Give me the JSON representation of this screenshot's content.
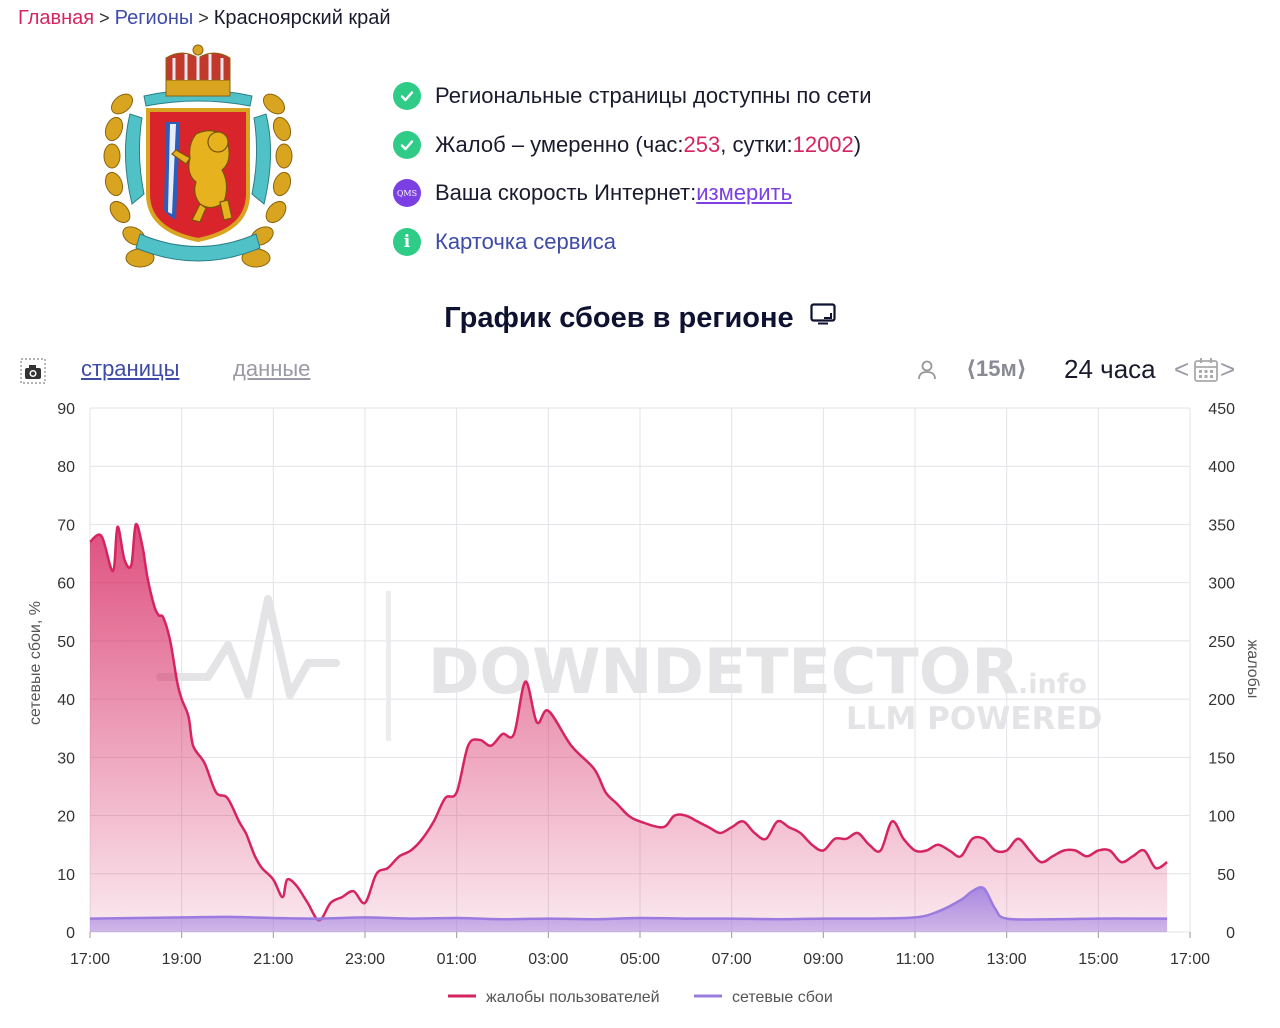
{
  "breadcrumb": {
    "home": "Главная",
    "regions": "Регионы",
    "current": "Красноярский край"
  },
  "status": {
    "network": "Региональные страницы доступны по сети",
    "complaints_prefix": "Жалоб – умеренно (час: ",
    "complaints_hour": "253",
    "complaints_mid": ", сутки: ",
    "complaints_day": "12002",
    "complaints_suffix": ")",
    "speed_prefix": "Ваша скорость Интернет: ",
    "speed_link": "измерить",
    "qms_badge": "QMS",
    "card_link": "Карточка сервиса",
    "info_glyph": "i"
  },
  "chart_title": "График сбоев в регионе",
  "toolbar": {
    "tab_pages": "страницы",
    "tab_data": "данные",
    "interval": "⟨15м⟩",
    "period": "24 часа",
    "prev": "<",
    "next": ">"
  },
  "watermark": {
    "main": "DOWNDETECTOR",
    "suffix": ".info",
    "sub": "LLM POWERED"
  },
  "colors": {
    "complaints": "#d6245f",
    "network": "#9b7be0",
    "accent_purple": "#7b3fe4",
    "ok_green": "#2ecc87",
    "link_blue": "#3f4ba8"
  },
  "icons": [
    "check-circle-icon",
    "qms-icon",
    "info-icon",
    "camera-icon",
    "tv-icon",
    "user-icon",
    "calendar-icon"
  ],
  "chart_data": {
    "type": "area",
    "xlabel": "",
    "ylabel_left": "сетевые сбои, %",
    "ylabel_right": "жалобы",
    "ylim_left": [
      0,
      90
    ],
    "ylim_right": [
      0,
      450
    ],
    "yticks_left": [
      0,
      10,
      20,
      30,
      40,
      50,
      60,
      70,
      80,
      90
    ],
    "yticks_right": [
      0,
      50,
      100,
      150,
      200,
      250,
      300,
      350,
      400,
      450
    ],
    "xticks": [
      "17:00",
      "19:00",
      "21:00",
      "23:00",
      "01:00",
      "03:00",
      "05:00",
      "07:00",
      "09:00",
      "11:00",
      "13:00",
      "15:00",
      "17:00"
    ],
    "x_unit": "hours since 17:00",
    "grid": true,
    "legend_position": "bottom",
    "series": [
      {
        "name": "жалобы пользователей",
        "axis": "right",
        "x": [
          0,
          0.25,
          0.5,
          0.6,
          0.75,
          0.9,
          1.0,
          1.15,
          1.25,
          1.4,
          1.5,
          1.6,
          1.75,
          1.9,
          2.0,
          2.15,
          2.25,
          2.5,
          2.75,
          3.0,
          3.25,
          3.4,
          3.5,
          3.6,
          3.75,
          4.0,
          4.2,
          4.3,
          4.5,
          4.75,
          5.0,
          5.25,
          5.5,
          5.75,
          6.0,
          6.25,
          6.5,
          6.75,
          7.0,
          7.25,
          7.5,
          7.75,
          8.0,
          8.25,
          8.5,
          8.75,
          9.0,
          9.25,
          9.5,
          9.75,
          10.0,
          10.5,
          11.0,
          11.25,
          11.5,
          11.75,
          12.0,
          12.5,
          12.75,
          13.0,
          13.25,
          13.5,
          13.75,
          14.0,
          14.25,
          14.5,
          14.75,
          15.0,
          15.25,
          15.5,
          15.75,
          16.0,
          16.25,
          16.5,
          16.75,
          17.0,
          17.25,
          17.5,
          17.75,
          18.0,
          18.25,
          18.5,
          18.75,
          19.0,
          19.25,
          19.5,
          19.75,
          20.0,
          20.25,
          20.5,
          20.75,
          21.0,
          21.25,
          21.5,
          21.75,
          22.0,
          22.25,
          22.5,
          22.75,
          23.0,
          23.25,
          23.5
        ],
        "values": [
          335,
          340,
          310,
          348,
          320,
          315,
          350,
          330,
          305,
          280,
          272,
          270,
          250,
          215,
          200,
          185,
          160,
          145,
          120,
          115,
          95,
          85,
          75,
          65,
          55,
          45,
          30,
          45,
          40,
          25,
          10,
          25,
          30,
          35,
          25,
          50,
          55,
          65,
          70,
          80,
          95,
          115,
          120,
          160,
          165,
          160,
          170,
          170,
          215,
          180,
          190,
          160,
          140,
          120,
          110,
          100,
          95,
          90,
          100,
          100,
          95,
          90,
          85,
          90,
          95,
          85,
          80,
          95,
          90,
          85,
          75,
          70,
          80,
          80,
          85,
          75,
          70,
          95,
          80,
          70,
          70,
          75,
          70,
          65,
          80,
          80,
          70,
          70,
          80,
          70,
          60,
          65,
          70,
          70,
          65,
          70,
          70,
          60,
          65,
          70,
          55,
          60
        ]
      },
      {
        "name": "сетевые сбои",
        "axis": "left",
        "x": [
          0,
          1,
          2,
          3,
          4,
          5,
          6,
          7,
          8,
          9,
          10,
          11,
          12,
          13,
          14,
          15,
          16,
          17,
          18,
          18.5,
          19,
          19.25,
          19.5,
          19.75,
          20,
          21,
          22,
          23,
          23.5
        ],
        "values": [
          2.3,
          2.4,
          2.5,
          2.6,
          2.4,
          2.3,
          2.5,
          2.3,
          2.4,
          2.2,
          2.3,
          2.2,
          2.4,
          2.3,
          2.3,
          2.2,
          2.3,
          2.3,
          2.5,
          3.5,
          5.5,
          7,
          7.5,
          4,
          2.3,
          2.2,
          2.3,
          2.3,
          2.3
        ]
      }
    ]
  }
}
